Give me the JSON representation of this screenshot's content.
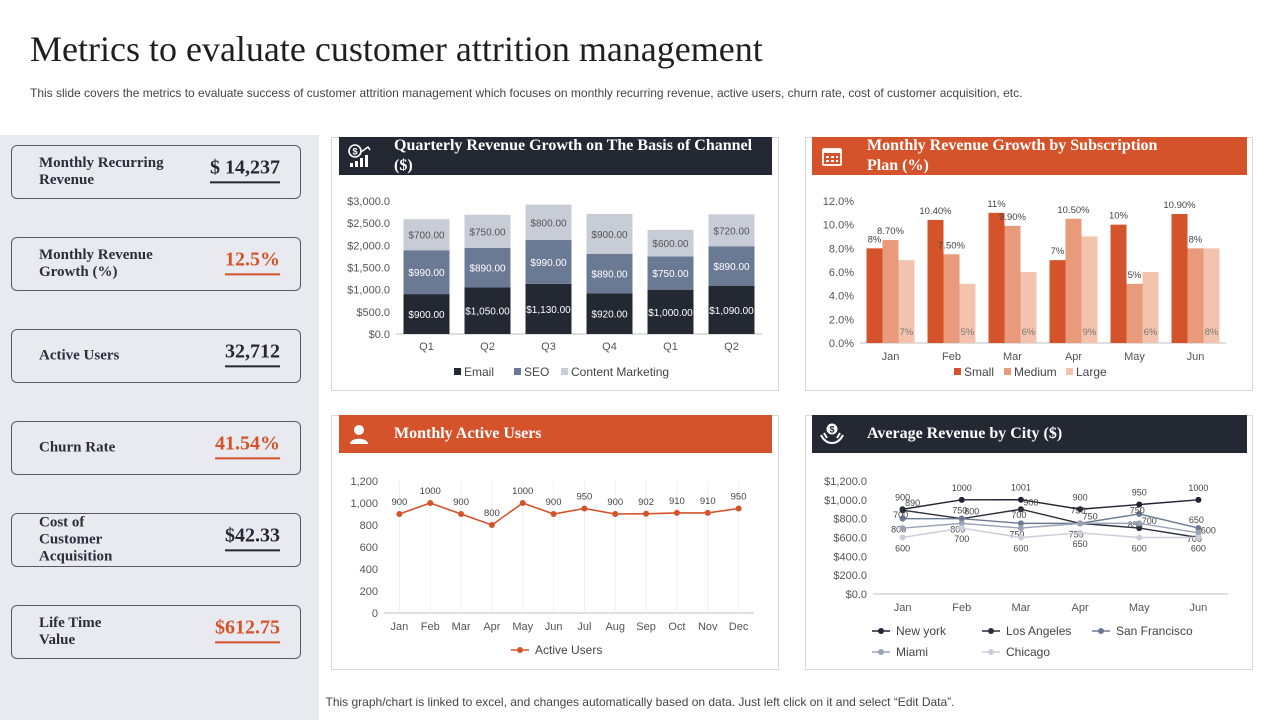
{
  "page": {
    "title": "Metrics to evaluate customer attrition management",
    "subtitle": "This slide covers the metrics to evaluate success of customer attrition management which focuses on monthly recurring revenue, active users, churn rate, cost of customer acquisition, etc.",
    "footer": "This graph/chart is linked to excel,  and changes automatically based on data. Just left click on it and select “Edit Data”."
  },
  "colors": {
    "dark": "#232833",
    "orange": "#d4532a",
    "seo": "#6b7a94",
    "content": "#c8ccd6",
    "medium": "#e89a7a",
    "large": "#f3c3ae"
  },
  "kpis": [
    {
      "label": "Monthly Recurring Revenue",
      "value": "$ 14,237",
      "color": "#232833"
    },
    {
      "label": "Monthly Revenue Growth (%)",
      "value": "12.5%",
      "color": "#d4532a"
    },
    {
      "label": "Active Users",
      "value": "32,712",
      "color": "#232833"
    },
    {
      "label": "Churn Rate",
      "value": "41.54%",
      "color": "#d4532a"
    },
    {
      "label": "Cost of Customer Acquisition",
      "value": "$42.33",
      "color": "#232833"
    },
    {
      "label": "Life Time Value",
      "value": "$612.75",
      "color": "#d4532a"
    }
  ],
  "panels": {
    "quarterly": {
      "title": "Quarterly Revenue Growth on The Basis of Channel ($)",
      "icon": "dollar-growth-icon"
    },
    "subscription": {
      "title": "Monthly Revenue Growth by Subscription Plan (%)",
      "icon": "calendar-icon"
    },
    "active": {
      "title": "Monthly Active Users",
      "icon": "user-icon"
    },
    "city": {
      "title": "Average Revenue by City ($)",
      "icon": "hand-dollar-icon"
    }
  },
  "chart_data": [
    {
      "id": "quarterly",
      "type": "bar",
      "stacked": true,
      "categories": [
        "Q1",
        "Q2",
        "Q3",
        "Q4",
        "Q1",
        "Q2"
      ],
      "series": [
        {
          "name": "Email",
          "values": [
            900,
            1050,
            1130,
            920,
            1000,
            1090
          ],
          "labels": [
            "$900.00",
            "$1,050.00",
            "$1,130.00",
            "$920.00",
            "$1,000.00",
            "$1,090.00"
          ]
        },
        {
          "name": "SEO",
          "values": [
            990,
            890,
            990,
            890,
            750,
            890
          ],
          "labels": [
            "$990.00",
            "$890.00",
            "$990.00",
            "$890.00",
            "$750.00",
            "$890.00"
          ]
        },
        {
          "name": "Content Marketing",
          "values": [
            700,
            750,
            800,
            900,
            600,
            720
          ],
          "labels": [
            "$700.00",
            "$750.00",
            "$800.00",
            "$900.00",
            "$600.00",
            "$720.00"
          ]
        }
      ],
      "yticks": [
        "$0.0",
        "$500.0",
        "$1,000.0",
        "$1,500.0",
        "$2,000.0",
        "$2,500.0",
        "$3,000.0"
      ],
      "ylim": [
        0,
        3000
      ],
      "legend": "bottom"
    },
    {
      "id": "subscription",
      "type": "bar",
      "categories": [
        "Jan",
        "Feb",
        "Mar",
        "Apr",
        "May",
        "Jun"
      ],
      "series": [
        {
          "name": "Small",
          "values": [
            8,
            10.4,
            11,
            7,
            10,
            10.9
          ],
          "labels": [
            "8%",
            "10.40%",
            "11%",
            "7%",
            "10%",
            "10.90%"
          ]
        },
        {
          "name": "Medium",
          "values": [
            8.7,
            7.5,
            9.9,
            10.5,
            5,
            8
          ],
          "labels": [
            "8.70%",
            "7.50%",
            "9.90%",
            "10.50%",
            "5%",
            "8%"
          ]
        },
        {
          "name": "Large",
          "values": [
            7,
            5,
            6,
            9,
            6,
            8
          ],
          "labels": [
            "7%",
            "5%",
            "6%",
            "9%",
            "6%",
            "8%"
          ]
        }
      ],
      "yticks": [
        "0.0%",
        "2.0%",
        "4.0%",
        "6.0%",
        "8.0%",
        "10.0%",
        "12.0%"
      ],
      "ylim": [
        0,
        12
      ],
      "legend": "bottom"
    },
    {
      "id": "active",
      "type": "line",
      "categories": [
        "Jan",
        "Feb",
        "Mar",
        "Apr",
        "May",
        "Jun",
        "Jul",
        "Aug",
        "Sep",
        "Oct",
        "Nov",
        "Dec"
      ],
      "series": [
        {
          "name": "Active Users",
          "values": [
            900,
            1000,
            900,
            800,
            1000,
            900,
            950,
            900,
            902,
            910,
            910,
            950
          ],
          "labels": [
            "900",
            "1000",
            "900",
            "800",
            "1000",
            "900",
            "950",
            "900",
            "902",
            "910",
            "910",
            "950"
          ]
        }
      ],
      "yticks": [
        "0",
        "200",
        "400",
        "600",
        "800",
        "1,000",
        "1,200"
      ],
      "ylim": [
        0,
        1200
      ],
      "legend": "bottom"
    },
    {
      "id": "city",
      "type": "line",
      "categories": [
        "Jan",
        "Feb",
        "Mar",
        "Apr",
        "May",
        "Jun"
      ],
      "series": [
        {
          "name": "New york",
          "values": [
            900,
            1000,
            1001,
            900,
            950,
            1000
          ],
          "labels": [
            "900",
            "1000",
            "1001",
            "900",
            "950",
            "1000"
          ]
        },
        {
          "name": "Los Angeles",
          "values": [
            890,
            800,
            900,
            750,
            700,
            600
          ],
          "labels": [
            "890",
            "800",
            "900",
            "750",
            "700",
            "600"
          ]
        },
        {
          "name": "San Francisco",
          "values": [
            800,
            800,
            750,
            750,
            850,
            700
          ],
          "labels": [
            "800",
            "800",
            "750",
            "750",
            "850",
            "700"
          ]
        },
        {
          "name": "Miami",
          "values": [
            700,
            750,
            700,
            750,
            750,
            650
          ],
          "labels": [
            "700",
            "750",
            "700",
            "750",
            "750",
            "650"
          ]
        },
        {
          "name": "Chicago",
          "values": [
            600,
            700,
            600,
            650,
            600,
            600
          ],
          "labels": [
            "600",
            "700",
            "600",
            "650",
            "600",
            "600"
          ]
        }
      ],
      "yticks": [
        "$0.0",
        "$200.0",
        "$400.0",
        "$600.0",
        "$800.0",
        "$1,000.0",
        "$1,200.0"
      ],
      "ylim": [
        0,
        1200
      ],
      "legend": "bottom"
    }
  ]
}
